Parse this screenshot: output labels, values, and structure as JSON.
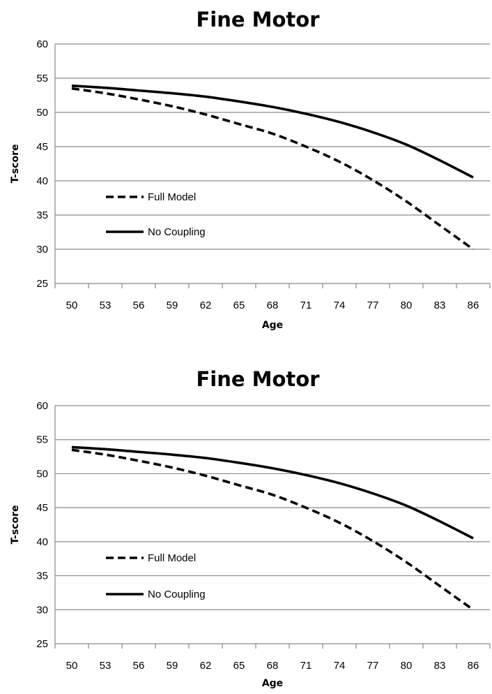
{
  "chart_data": [
    {
      "type": "line",
      "title": "Fine Motor",
      "xlabel": "Age",
      "ylabel": "T-score",
      "x": [
        50,
        53,
        56,
        59,
        62,
        65,
        68,
        71,
        74,
        77,
        80,
        83,
        86
      ],
      "ylim": [
        25,
        60
      ],
      "yticks": [
        25,
        30,
        35,
        40,
        45,
        50,
        55,
        60
      ],
      "grid": true,
      "legend_placement": "lower-left",
      "series": [
        {
          "name": "Full Model",
          "style": "dashed",
          "color": "#000000",
          "values": [
            53.5,
            52.8,
            51.9,
            50.9,
            49.7,
            48.3,
            46.9,
            45.0,
            42.8,
            40.1,
            37.0,
            33.5,
            30.0
          ]
        },
        {
          "name": "No Coupling",
          "style": "solid",
          "color": "#000000",
          "values": [
            53.9,
            53.6,
            53.2,
            52.8,
            52.3,
            51.6,
            50.8,
            49.8,
            48.6,
            47.1,
            45.3,
            43.0,
            40.5
          ]
        }
      ]
    },
    {
      "type": "line",
      "title": "Fine Motor",
      "xlabel": "Age",
      "ylabel": "T-score",
      "x": [
        50,
        53,
        56,
        59,
        62,
        65,
        68,
        71,
        74,
        77,
        80,
        83,
        86
      ],
      "ylim": [
        25,
        60
      ],
      "yticks": [
        25,
        30,
        35,
        40,
        45,
        50,
        55,
        60
      ],
      "grid": true,
      "legend_placement": "lower-left",
      "series": [
        {
          "name": "Full Model",
          "style": "dashed",
          "color": "#000000",
          "values": [
            53.5,
            52.8,
            51.9,
            50.9,
            49.7,
            48.3,
            46.9,
            45.0,
            42.8,
            40.1,
            37.0,
            33.5,
            30.0
          ]
        },
        {
          "name": "No Coupling",
          "style": "solid",
          "color": "#000000",
          "values": [
            53.9,
            53.6,
            53.2,
            52.8,
            52.3,
            51.6,
            50.8,
            49.8,
            48.6,
            47.1,
            45.3,
            43.0,
            40.5
          ]
        }
      ]
    }
  ]
}
